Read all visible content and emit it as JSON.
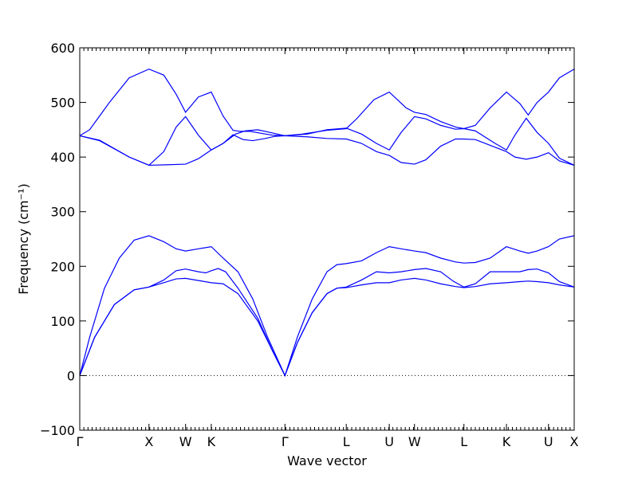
{
  "chart_data": {
    "type": "line",
    "title": "",
    "xlabel": "Wave vector",
    "ylabel": "Frequency (cm⁻¹)",
    "ylim": [
      -100,
      600
    ],
    "yticks": [
      -100,
      0,
      100,
      200,
      300,
      400,
      500,
      600
    ],
    "ytick_labels": [
      "−100",
      "0",
      "100",
      "200",
      "300",
      "400",
      "500",
      "600"
    ],
    "xlim": [
      0,
      1
    ],
    "zero_line": true,
    "grid": false,
    "legend": "none",
    "line_color": "#0000ff",
    "xticks": [
      {
        "label": "Γ",
        "x": 0.0
      },
      {
        "label": "X",
        "x": 0.14
      },
      {
        "label": "W",
        "x": 0.214
      },
      {
        "label": "K",
        "x": 0.266
      },
      {
        "label": "Γ",
        "x": 0.415
      },
      {
        "label": "L",
        "x": 0.539
      },
      {
        "label": "U",
        "x": 0.626
      },
      {
        "label": "W",
        "x": 0.677
      },
      {
        "label": "L",
        "x": 0.777
      },
      {
        "label": "K",
        "x": 0.863
      },
      {
        "label": "U",
        "x": 0.948
      },
      {
        "label": "X",
        "x": 1.0
      }
    ],
    "series": [
      {
        "values": [
          [
            0.0,
            439
          ],
          [
            0.02,
            450
          ],
          [
            0.06,
            500
          ],
          [
            0.1,
            545
          ],
          [
            0.14,
            561
          ],
          [
            0.17,
            550
          ],
          [
            0.195,
            515
          ],
          [
            0.214,
            482
          ],
          [
            0.24,
            510
          ],
          [
            0.266,
            519
          ],
          [
            0.29,
            475
          ],
          [
            0.31,
            449
          ],
          [
            0.325,
            447
          ],
          [
            0.345,
            447
          ],
          [
            0.37,
            443
          ],
          [
            0.39,
            440
          ],
          [
            0.415,
            439
          ],
          [
            0.45,
            442
          ],
          [
            0.5,
            449
          ],
          [
            0.539,
            452
          ],
          [
            0.56,
            470
          ],
          [
            0.595,
            505
          ],
          [
            0.626,
            519
          ],
          [
            0.66,
            490
          ],
          [
            0.677,
            482
          ],
          [
            0.7,
            478
          ],
          [
            0.73,
            465
          ],
          [
            0.76,
            455
          ],
          [
            0.777,
            452
          ],
          [
            0.8,
            458
          ],
          [
            0.83,
            490
          ],
          [
            0.863,
            519
          ],
          [
            0.89,
            498
          ],
          [
            0.907,
            477
          ],
          [
            0.925,
            500
          ],
          [
            0.948,
            519
          ],
          [
            0.97,
            545
          ],
          [
            1.0,
            561
          ]
        ]
      },
      {
        "values": [
          [
            0.0,
            439
          ],
          [
            0.04,
            430
          ],
          [
            0.1,
            400
          ],
          [
            0.14,
            385
          ],
          [
            0.18,
            386
          ],
          [
            0.214,
            387
          ],
          [
            0.24,
            397
          ],
          [
            0.266,
            413
          ],
          [
            0.29,
            425
          ],
          [
            0.315,
            442
          ],
          [
            0.335,
            448
          ],
          [
            0.36,
            450
          ],
          [
            0.39,
            444
          ],
          [
            0.415,
            439
          ],
          [
            0.46,
            442
          ],
          [
            0.5,
            450
          ],
          [
            0.539,
            453
          ],
          [
            0.57,
            442
          ],
          [
            0.6,
            425
          ],
          [
            0.626,
            413
          ],
          [
            0.65,
            445
          ],
          [
            0.677,
            474
          ],
          [
            0.7,
            470
          ],
          [
            0.73,
            458
          ],
          [
            0.76,
            451
          ],
          [
            0.777,
            452
          ],
          [
            0.8,
            448
          ],
          [
            0.84,
            425
          ],
          [
            0.863,
            413
          ],
          [
            0.88,
            440
          ],
          [
            0.903,
            471
          ],
          [
            0.925,
            445
          ],
          [
            0.948,
            425
          ],
          [
            0.97,
            398
          ],
          [
            1.0,
            385
          ]
        ]
      },
      {
        "values": [
          [
            0.0,
            439
          ],
          [
            0.04,
            431
          ],
          [
            0.1,
            400
          ],
          [
            0.14,
            385
          ],
          [
            0.17,
            410
          ],
          [
            0.195,
            455
          ],
          [
            0.214,
            474
          ],
          [
            0.24,
            440
          ],
          [
            0.266,
            413
          ],
          [
            0.29,
            425
          ],
          [
            0.31,
            441
          ],
          [
            0.33,
            432
          ],
          [
            0.35,
            430
          ],
          [
            0.375,
            434
          ],
          [
            0.395,
            438
          ],
          [
            0.415,
            439
          ],
          [
            0.46,
            437
          ],
          [
            0.5,
            434
          ],
          [
            0.539,
            433
          ],
          [
            0.57,
            425
          ],
          [
            0.6,
            410
          ],
          [
            0.626,
            403
          ],
          [
            0.65,
            390
          ],
          [
            0.677,
            387
          ],
          [
            0.7,
            395
          ],
          [
            0.73,
            420
          ],
          [
            0.76,
            433
          ],
          [
            0.777,
            433
          ],
          [
            0.8,
            432
          ],
          [
            0.84,
            418
          ],
          [
            0.863,
            410
          ],
          [
            0.88,
            400
          ],
          [
            0.903,
            396
          ],
          [
            0.925,
            400
          ],
          [
            0.948,
            408
          ],
          [
            0.97,
            393
          ],
          [
            1.0,
            385
          ]
        ]
      },
      {
        "values": [
          [
            0.0,
            0
          ],
          [
            0.02,
            70
          ],
          [
            0.05,
            160
          ],
          [
            0.08,
            215
          ],
          [
            0.11,
            248
          ],
          [
            0.14,
            256
          ],
          [
            0.17,
            245
          ],
          [
            0.195,
            232
          ],
          [
            0.214,
            228
          ],
          [
            0.24,
            232
          ],
          [
            0.266,
            236
          ],
          [
            0.29,
            215
          ],
          [
            0.32,
            190
          ],
          [
            0.35,
            140
          ],
          [
            0.38,
            70
          ],
          [
            0.415,
            0
          ],
          [
            0.44,
            70
          ],
          [
            0.47,
            140
          ],
          [
            0.5,
            190
          ],
          [
            0.52,
            203
          ],
          [
            0.539,
            205
          ],
          [
            0.57,
            210
          ],
          [
            0.6,
            225
          ],
          [
            0.626,
            236
          ],
          [
            0.65,
            232
          ],
          [
            0.677,
            228
          ],
          [
            0.7,
            225
          ],
          [
            0.73,
            215
          ],
          [
            0.76,
            208
          ],
          [
            0.777,
            206
          ],
          [
            0.8,
            207
          ],
          [
            0.83,
            215
          ],
          [
            0.863,
            236
          ],
          [
            0.89,
            228
          ],
          [
            0.907,
            224
          ],
          [
            0.925,
            228
          ],
          [
            0.948,
            236
          ],
          [
            0.97,
            250
          ],
          [
            1.0,
            256
          ]
        ]
      },
      {
        "values": [
          [
            0.0,
            0
          ],
          [
            0.03,
            70
          ],
          [
            0.07,
            130
          ],
          [
            0.11,
            157
          ],
          [
            0.14,
            162
          ],
          [
            0.17,
            175
          ],
          [
            0.195,
            192
          ],
          [
            0.214,
            195
          ],
          [
            0.24,
            190
          ],
          [
            0.255,
            188
          ],
          [
            0.266,
            192
          ],
          [
            0.28,
            196
          ],
          [
            0.295,
            190
          ],
          [
            0.32,
            160
          ],
          [
            0.36,
            105
          ],
          [
            0.39,
            45
          ],
          [
            0.415,
            0
          ],
          [
            0.44,
            60
          ],
          [
            0.47,
            115
          ],
          [
            0.5,
            150
          ],
          [
            0.52,
            160
          ],
          [
            0.539,
            162
          ],
          [
            0.57,
            175
          ],
          [
            0.6,
            190
          ],
          [
            0.626,
            188
          ],
          [
            0.65,
            190
          ],
          [
            0.677,
            194
          ],
          [
            0.7,
            196
          ],
          [
            0.73,
            190
          ],
          [
            0.755,
            173
          ],
          [
            0.777,
            162
          ],
          [
            0.8,
            168
          ],
          [
            0.83,
            190
          ],
          [
            0.863,
            190
          ],
          [
            0.89,
            190
          ],
          [
            0.907,
            194
          ],
          [
            0.925,
            195
          ],
          [
            0.948,
            188
          ],
          [
            0.97,
            172
          ],
          [
            1.0,
            162
          ]
        ]
      },
      {
        "values": [
          [
            0.0,
            0
          ],
          [
            0.03,
            70
          ],
          [
            0.07,
            130
          ],
          [
            0.11,
            157
          ],
          [
            0.14,
            162
          ],
          [
            0.17,
            170
          ],
          [
            0.195,
            177
          ],
          [
            0.214,
            178
          ],
          [
            0.24,
            174
          ],
          [
            0.266,
            170
          ],
          [
            0.29,
            168
          ],
          [
            0.32,
            150
          ],
          [
            0.36,
            100
          ],
          [
            0.39,
            45
          ],
          [
            0.415,
            0
          ],
          [
            0.44,
            60
          ],
          [
            0.47,
            115
          ],
          [
            0.5,
            150
          ],
          [
            0.52,
            160
          ],
          [
            0.539,
            161
          ],
          [
            0.57,
            166
          ],
          [
            0.6,
            170
          ],
          [
            0.626,
            170
          ],
          [
            0.65,
            175
          ],
          [
            0.677,
            178
          ],
          [
            0.7,
            175
          ],
          [
            0.73,
            168
          ],
          [
            0.76,
            163
          ],
          [
            0.777,
            161
          ],
          [
            0.8,
            163
          ],
          [
            0.83,
            168
          ],
          [
            0.863,
            170
          ],
          [
            0.89,
            172
          ],
          [
            0.907,
            173
          ],
          [
            0.925,
            172
          ],
          [
            0.948,
            170
          ],
          [
            0.97,
            166
          ],
          [
            1.0,
            162
          ]
        ]
      }
    ]
  }
}
